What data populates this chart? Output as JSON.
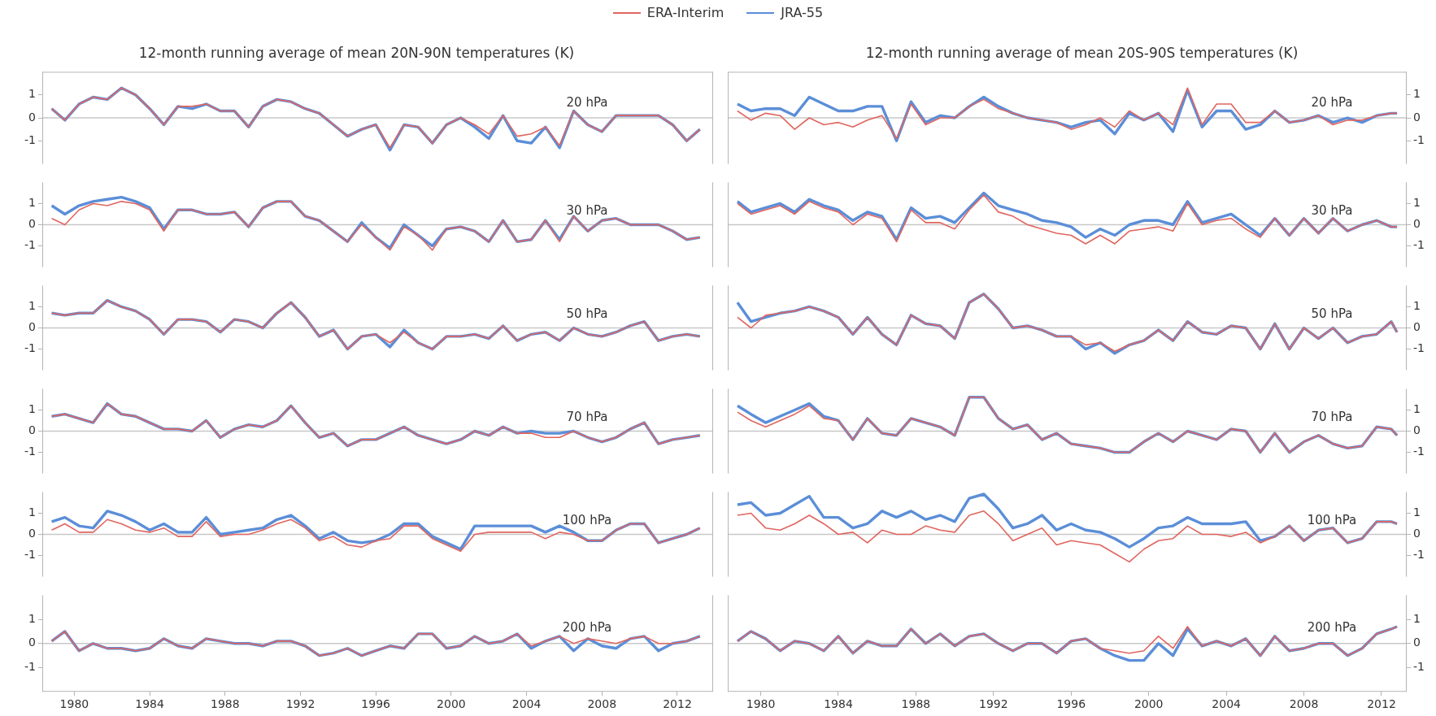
{
  "chart_data": [
    {
      "type": "line",
      "title": "12-month running average of mean 20N-90N temperatures (K)",
      "legend": "top",
      "annotations": [
        "20 hPa"
      ],
      "marker": "none",
      "tick_labels": "y",
      "xlim": [
        1978.3,
        2013.9
      ],
      "xticks": [
        1980,
        1984,
        1988,
        1992,
        1996,
        2000,
        2004,
        2008,
        2012
      ],
      "ylim": [
        -2,
        2
      ],
      "yticks": [
        1,
        0,
        -1
      ],
      "ref_lines": [
        {
          "axis": "y",
          "value": 0,
          "color": "#c8c8c8"
        }
      ],
      "x": [
        1978.8,
        1979.5,
        1980.25,
        1981,
        1981.75,
        1982.5,
        1983.25,
        1984,
        1984.75,
        1985.5,
        1986.25,
        1987,
        1987.75,
        1988.5,
        1989.25,
        1990,
        1990.75,
        1991.5,
        1992.25,
        1993,
        1993.75,
        1994.5,
        1995.25,
        1996,
        1996.75,
        1997.5,
        1998.25,
        1999,
        1999.75,
        2000.5,
        2001.25,
        2002,
        2002.75,
        2003.5,
        2004.25,
        2005,
        2005.75,
        2006.5,
        2007.25,
        2008,
        2008.75,
        2009.5,
        2010.25,
        2011,
        2011.75,
        2012.5,
        2013.2
      ],
      "series": [
        {
          "name": "JRA-55",
          "color": "#5b8ed8",
          "values": [
            0.4,
            -0.1,
            0.6,
            0.9,
            0.8,
            1.3,
            1.0,
            0.4,
            -0.3,
            0.5,
            0.4,
            0.6,
            0.3,
            0.3,
            -0.4,
            0.5,
            0.8,
            0.7,
            0.4,
            0.2,
            -0.3,
            -0.8,
            -0.5,
            -0.3,
            -1.4,
            -0.3,
            -0.4,
            -1.1,
            -0.3,
            0.0,
            -0.4,
            -0.9,
            0.1,
            -1.0,
            -1.1,
            -0.4,
            -1.3,
            0.3,
            -0.3,
            -0.6,
            0.1,
            0.1,
            0.1,
            0.1,
            -0.3,
            -1.0,
            -0.5
          ]
        },
        {
          "name": "ERA-Interim",
          "color": "#e0655f",
          "values": [
            0.4,
            -0.1,
            0.6,
            0.9,
            0.8,
            1.3,
            1.0,
            0.4,
            -0.3,
            0.5,
            0.5,
            0.6,
            0.3,
            0.3,
            -0.4,
            0.5,
            0.8,
            0.7,
            0.4,
            0.2,
            -0.3,
            -0.8,
            -0.5,
            -0.3,
            -1.3,
            -0.3,
            -0.4,
            -1.1,
            -0.3,
            0.0,
            -0.3,
            -0.7,
            0.1,
            -0.8,
            -0.7,
            -0.4,
            -1.2,
            0.3,
            -0.3,
            -0.6,
            0.1,
            0.1,
            0.1,
            0.1,
            -0.3,
            -1.0,
            -0.5
          ]
        }
      ]
    },
    {
      "type": "line",
      "annotations": [
        "30 hPa"
      ],
      "marker": "none",
      "tick_labels": "y",
      "xlim": [
        1978.3,
        2013.9
      ],
      "xticks": [
        1980,
        1984,
        1988,
        1992,
        1996,
        2000,
        2004,
        2008,
        2012
      ],
      "ylim": [
        -2,
        2
      ],
      "yticks": [
        1,
        0,
        -1
      ],
      "ref_lines": [
        {
          "axis": "y",
          "value": 0,
          "color": "#c8c8c8"
        }
      ],
      "x": [
        1978.8,
        1979.5,
        1980.25,
        1981,
        1981.75,
        1982.5,
        1983.25,
        1984,
        1984.75,
        1985.5,
        1986.25,
        1987,
        1987.75,
        1988.5,
        1989.25,
        1990,
        1990.75,
        1991.5,
        1992.25,
        1993,
        1993.75,
        1994.5,
        1995.25,
        1996,
        1996.75,
        1997.5,
        1998.25,
        1999,
        1999.75,
        2000.5,
        2001.25,
        2002,
        2002.75,
        2003.5,
        2004.25,
        2005,
        2005.75,
        2006.5,
        2007.25,
        2008,
        2008.75,
        2009.5,
        2010.25,
        2011,
        2011.75,
        2012.5,
        2013.2
      ],
      "series": [
        {
          "name": "JRA-55",
          "color": "#5b8ed8",
          "values": [
            0.9,
            0.5,
            0.9,
            1.1,
            1.2,
            1.3,
            1.1,
            0.8,
            -0.2,
            0.7,
            0.7,
            0.5,
            0.5,
            0.6,
            -0.1,
            0.8,
            1.1,
            1.1,
            0.4,
            0.2,
            -0.3,
            -0.8,
            0.1,
            -0.6,
            -1.1,
            0.0,
            -0.5,
            -1.0,
            -0.2,
            -0.1,
            -0.3,
            -0.8,
            0.2,
            -0.8,
            -0.7,
            0.2,
            -0.7,
            0.4,
            -0.3,
            0.2,
            0.3,
            0.0,
            0.0,
            0.0,
            -0.3,
            -0.7,
            -0.6
          ]
        },
        {
          "name": "ERA-Interim",
          "color": "#e0655f",
          "values": [
            0.3,
            0.0,
            0.7,
            1.0,
            0.9,
            1.1,
            1.0,
            0.7,
            -0.3,
            0.7,
            0.7,
            0.5,
            0.5,
            0.6,
            -0.1,
            0.8,
            1.1,
            1.1,
            0.4,
            0.2,
            -0.3,
            -0.8,
            0.0,
            -0.6,
            -1.2,
            -0.1,
            -0.5,
            -1.2,
            -0.2,
            -0.1,
            -0.3,
            -0.8,
            0.2,
            -0.8,
            -0.7,
            0.2,
            -0.8,
            0.4,
            -0.3,
            0.2,
            0.3,
            0.0,
            0.0,
            0.0,
            -0.3,
            -0.7,
            -0.6
          ]
        }
      ]
    },
    {
      "type": "line",
      "annotations": [
        "50 hPa"
      ],
      "marker": "none",
      "tick_labels": "y",
      "xlim": [
        1978.3,
        2013.9
      ],
      "xticks": [
        1980,
        1984,
        1988,
        1992,
        1996,
        2000,
        2004,
        2008,
        2012
      ],
      "ylim": [
        -2,
        2
      ],
      "yticks": [
        1,
        0,
        -1
      ],
      "ref_lines": [
        {
          "axis": "y",
          "value": 0,
          "color": "#c8c8c8"
        }
      ],
      "x": [
        1978.8,
        1979.5,
        1980.25,
        1981,
        1981.75,
        1982.5,
        1983.25,
        1984,
        1984.75,
        1985.5,
        1986.25,
        1987,
        1987.75,
        1988.5,
        1989.25,
        1990,
        1990.75,
        1991.5,
        1992.25,
        1993,
        1993.75,
        1994.5,
        1995.25,
        1996,
        1996.75,
        1997.5,
        1998.25,
        1999,
        1999.75,
        2000.5,
        2001.25,
        2002,
        2002.75,
        2003.5,
        2004.25,
        2005,
        2005.75,
        2006.5,
        2007.25,
        2008,
        2008.75,
        2009.5,
        2010.25,
        2011,
        2011.75,
        2012.5,
        2013.2
      ],
      "series": [
        {
          "name": "JRA-55",
          "color": "#5b8ed8",
          "values": [
            0.7,
            0.6,
            0.7,
            0.7,
            1.3,
            1.0,
            0.8,
            0.4,
            -0.3,
            0.4,
            0.4,
            0.3,
            -0.2,
            0.4,
            0.3,
            0.0,
            0.7,
            1.2,
            0.5,
            -0.4,
            -0.1,
            -1.0,
            -0.4,
            -0.3,
            -0.9,
            -0.1,
            -0.7,
            -1.0,
            -0.4,
            -0.4,
            -0.3,
            -0.5,
            0.1,
            -0.6,
            -0.3,
            -0.2,
            -0.6,
            0.0,
            -0.3,
            -0.4,
            -0.2,
            0.1,
            0.3,
            -0.6,
            -0.4,
            -0.3,
            -0.4
          ]
        },
        {
          "name": "ERA-Interim",
          "color": "#e0655f",
          "values": [
            0.7,
            0.6,
            0.7,
            0.7,
            1.3,
            1.0,
            0.8,
            0.4,
            -0.3,
            0.4,
            0.4,
            0.3,
            -0.2,
            0.4,
            0.3,
            0.0,
            0.7,
            1.2,
            0.5,
            -0.4,
            -0.1,
            -1.0,
            -0.4,
            -0.3,
            -0.7,
            -0.2,
            -0.7,
            -1.0,
            -0.4,
            -0.4,
            -0.3,
            -0.5,
            0.1,
            -0.6,
            -0.3,
            -0.2,
            -0.6,
            0.0,
            -0.3,
            -0.4,
            -0.2,
            0.1,
            0.3,
            -0.6,
            -0.4,
            -0.3,
            -0.4
          ]
        }
      ]
    },
    {
      "type": "line",
      "annotations": [
        "70 hPa"
      ],
      "marker": "none",
      "tick_labels": "y",
      "xlim": [
        1978.3,
        2013.9
      ],
      "xticks": [
        1980,
        1984,
        1988,
        1992,
        1996,
        2000,
        2004,
        2008,
        2012
      ],
      "ylim": [
        -2,
        2
      ],
      "yticks": [
        1,
        0,
        -1
      ],
      "ref_lines": [
        {
          "axis": "y",
          "value": 0,
          "color": "#c8c8c8"
        }
      ],
      "x": [
        1978.8,
        1979.5,
        1980.25,
        1981,
        1981.75,
        1982.5,
        1983.25,
        1984,
        1984.75,
        1985.5,
        1986.25,
        1987,
        1987.75,
        1988.5,
        1989.25,
        1990,
        1990.75,
        1991.5,
        1992.25,
        1993,
        1993.75,
        1994.5,
        1995.25,
        1996,
        1996.75,
        1997.5,
        1998.25,
        1999,
        1999.75,
        2000.5,
        2001.25,
        2002,
        2002.75,
        2003.5,
        2004.25,
        2005,
        2005.75,
        2006.5,
        2007.25,
        2008,
        2008.75,
        2009.5,
        2010.25,
        2011,
        2011.75,
        2012.5,
        2013.2
      ],
      "series": [
        {
          "name": "JRA-55",
          "color": "#5b8ed8",
          "values": [
            0.7,
            0.8,
            0.6,
            0.4,
            1.3,
            0.8,
            0.7,
            0.4,
            0.1,
            0.1,
            0.0,
            0.5,
            -0.3,
            0.1,
            0.3,
            0.2,
            0.5,
            1.2,
            0.4,
            -0.3,
            -0.1,
            -0.7,
            -0.4,
            -0.4,
            -0.1,
            0.2,
            -0.2,
            -0.4,
            -0.6,
            -0.4,
            0.0,
            -0.2,
            0.2,
            -0.1,
            0.0,
            -0.1,
            -0.1,
            0.0,
            -0.3,
            -0.5,
            -0.3,
            0.1,
            0.4,
            -0.6,
            -0.4,
            -0.3,
            -0.2
          ]
        },
        {
          "name": "ERA-Interim",
          "color": "#e0655f",
          "values": [
            0.7,
            0.8,
            0.6,
            0.4,
            1.3,
            0.8,
            0.7,
            0.4,
            0.1,
            0.1,
            0.0,
            0.5,
            -0.3,
            0.1,
            0.3,
            0.2,
            0.5,
            1.2,
            0.4,
            -0.3,
            -0.1,
            -0.7,
            -0.4,
            -0.4,
            -0.1,
            0.2,
            -0.2,
            -0.4,
            -0.6,
            -0.4,
            0.0,
            -0.2,
            0.2,
            -0.1,
            -0.1,
            -0.3,
            -0.3,
            0.0,
            -0.3,
            -0.5,
            -0.3,
            0.1,
            0.4,
            -0.6,
            -0.4,
            -0.3,
            -0.2
          ]
        }
      ]
    },
    {
      "type": "line",
      "annotations": [
        "100 hPa"
      ],
      "marker": "none",
      "tick_labels": "y",
      "xlim": [
        1978.3,
        2013.9
      ],
      "xticks": [
        1980,
        1984,
        1988,
        1992,
        1996,
        2000,
        2004,
        2008,
        2012
      ],
      "ylim": [
        -2,
        2
      ],
      "yticks": [
        1,
        0,
        -1
      ],
      "ref_lines": [
        {
          "axis": "y",
          "value": 0,
          "color": "#c8c8c8"
        }
      ],
      "x": [
        1978.8,
        1979.5,
        1980.25,
        1981,
        1981.75,
        1982.5,
        1983.25,
        1984,
        1984.75,
        1985.5,
        1986.25,
        1987,
        1987.75,
        1988.5,
        1989.25,
        1990,
        1990.75,
        1991.5,
        1992.25,
        1993,
        1993.75,
        1994.5,
        1995.25,
        1996,
        1996.75,
        1997.5,
        1998.25,
        1999,
        1999.75,
        2000.5,
        2001.25,
        2002,
        2002.75,
        2003.5,
        2004.25,
        2005,
        2005.75,
        2006.5,
        2007.25,
        2008,
        2008.75,
        2009.5,
        2010.25,
        2011,
        2011.75,
        2012.5,
        2013.2
      ],
      "series": [
        {
          "name": "JRA-55",
          "color": "#5b8ed8",
          "values": [
            0.6,
            0.8,
            0.4,
            0.3,
            1.1,
            0.9,
            0.6,
            0.2,
            0.5,
            0.1,
            0.1,
            0.8,
            0.0,
            0.1,
            0.2,
            0.3,
            0.7,
            0.9,
            0.4,
            -0.2,
            0.1,
            -0.3,
            -0.4,
            -0.3,
            0.0,
            0.5,
            0.5,
            -0.1,
            -0.4,
            -0.7,
            0.4,
            0.4,
            0.4,
            0.4,
            0.4,
            0.1,
            0.4,
            0.1,
            -0.3,
            -0.3,
            0.2,
            0.5,
            0.5,
            -0.4,
            -0.2,
            0.0,
            0.3
          ]
        },
        {
          "name": "ERA-Interim",
          "color": "#e0655f",
          "values": [
            0.2,
            0.5,
            0.1,
            0.1,
            0.7,
            0.5,
            0.2,
            0.1,
            0.3,
            -0.1,
            -0.1,
            0.6,
            -0.1,
            0.0,
            0.0,
            0.2,
            0.5,
            0.7,
            0.3,
            -0.3,
            -0.1,
            -0.5,
            -0.6,
            -0.3,
            -0.2,
            0.4,
            0.4,
            -0.2,
            -0.5,
            -0.8,
            0.0,
            0.1,
            0.1,
            0.1,
            0.1,
            -0.2,
            0.1,
            0.0,
            -0.3,
            -0.3,
            0.2,
            0.5,
            0.5,
            -0.4,
            -0.2,
            0.0,
            0.3
          ]
        }
      ]
    },
    {
      "type": "line",
      "annotations": [
        "200 hPa"
      ],
      "marker": "none",
      "xlim": [
        1978.3,
        2013.9
      ],
      "xticks": [
        1980,
        1984,
        1988,
        1992,
        1996,
        2000,
        2004,
        2008,
        2012
      ],
      "ylim": [
        -2,
        2
      ],
      "yticks": [
        1,
        0,
        -1
      ],
      "ref_lines": [
        {
          "axis": "y",
          "value": 0,
          "color": "#c8c8c8"
        }
      ],
      "x": [
        1978.8,
        1979.5,
        1980.25,
        1981,
        1981.75,
        1982.5,
        1983.25,
        1984,
        1984.75,
        1985.5,
        1986.25,
        1987,
        1987.75,
        1988.5,
        1989.25,
        1990,
        1990.75,
        1991.5,
        1992.25,
        1993,
        1993.75,
        1994.5,
        1995.25,
        1996,
        1996.75,
        1997.5,
        1998.25,
        1999,
        1999.75,
        2000.5,
        2001.25,
        2002,
        2002.75,
        2003.5,
        2004.25,
        2005,
        2005.75,
        2006.5,
        2007.25,
        2008,
        2008.75,
        2009.5,
        2010.25,
        2011,
        2011.75,
        2012.5,
        2013.2
      ],
      "series": [
        {
          "name": "JRA-55",
          "color": "#5b8ed8",
          "values": [
            0.1,
            0.5,
            -0.3,
            0.0,
            -0.2,
            -0.2,
            -0.3,
            -0.2,
            0.2,
            -0.1,
            -0.2,
            0.2,
            0.1,
            0.0,
            0.0,
            -0.1,
            0.1,
            0.1,
            -0.1,
            -0.5,
            -0.4,
            -0.2,
            -0.5,
            -0.3,
            -0.1,
            -0.2,
            0.4,
            0.4,
            -0.2,
            -0.1,
            0.3,
            0.0,
            0.1,
            0.4,
            -0.2,
            0.1,
            0.3,
            -0.3,
            0.2,
            -0.1,
            -0.2,
            0.2,
            0.3,
            -0.3,
            0.0,
            0.1,
            0.3
          ]
        },
        {
          "name": "ERA-Interim",
          "color": "#e0655f",
          "values": [
            0.1,
            0.5,
            -0.3,
            0.0,
            -0.2,
            -0.2,
            -0.3,
            -0.2,
            0.2,
            -0.1,
            -0.2,
            0.2,
            0.1,
            0.0,
            0.0,
            -0.1,
            0.1,
            0.1,
            -0.1,
            -0.5,
            -0.4,
            -0.2,
            -0.5,
            -0.3,
            -0.1,
            -0.2,
            0.4,
            0.4,
            -0.2,
            -0.1,
            0.3,
            0.0,
            0.1,
            0.4,
            -0.1,
            0.1,
            0.3,
            0.0,
            0.2,
            0.1,
            0.0,
            0.2,
            0.3,
            0.0,
            0.0,
            0.1,
            0.3
          ]
        }
      ]
    },
    {
      "type": "line",
      "title": "12-month running average of mean 20S-90S temperatures (K)",
      "annotations": [
        "20 hPa"
      ],
      "marker": "none",
      "tick_labels": "y",
      "xlim": [
        1978.3,
        2013.3
      ],
      "xticks": [
        1980,
        1984,
        1988,
        1992,
        1996,
        2000,
        2004,
        2008,
        2012
      ],
      "ylim": [
        -2,
        2
      ],
      "yticks": [
        1,
        0,
        -1
      ],
      "ref_lines": [
        {
          "axis": "y",
          "value": 0,
          "color": "#c8c8c8"
        }
      ],
      "x": [
        1978.8,
        1979.5,
        1980.25,
        1981,
        1981.75,
        1982.5,
        1983.25,
        1984,
        1984.75,
        1985.5,
        1986.25,
        1987,
        1987.75,
        1988.5,
        1989.25,
        1990,
        1990.75,
        1991.5,
        1992.25,
        1993,
        1993.75,
        1994.5,
        1995.25,
        1996,
        1996.75,
        1997.5,
        1998.25,
        1999,
        1999.75,
        2000.5,
        2001.25,
        2002,
        2002.75,
        2003.5,
        2004.25,
        2005,
        2005.75,
        2006.5,
        2007.25,
        2008,
        2008.75,
        2009.5,
        2010.25,
        2011,
        2011.75,
        2012.5,
        2012.8
      ],
      "series": [
        {
          "name": "JRA-55",
          "color": "#5b8ed8",
          "values": [
            0.6,
            0.3,
            0.4,
            0.4,
            0.1,
            0.9,
            0.6,
            0.3,
            0.3,
            0.5,
            0.5,
            -1.0,
            0.7,
            -0.2,
            0.1,
            0.0,
            0.5,
            0.9,
            0.5,
            0.2,
            0.0,
            -0.1,
            -0.2,
            -0.4,
            -0.2,
            -0.1,
            -0.7,
            0.2,
            -0.1,
            0.2,
            -0.6,
            1.2,
            -0.4,
            0.3,
            0.3,
            -0.5,
            -0.3,
            0.3,
            -0.2,
            -0.1,
            0.1,
            -0.2,
            0.0,
            -0.2,
            0.1,
            0.2,
            0.2
          ]
        },
        {
          "name": "ERA-Interim",
          "color": "#e0655f",
          "values": [
            0.3,
            -0.1,
            0.2,
            0.1,
            -0.5,
            0.0,
            -0.3,
            -0.2,
            -0.4,
            -0.1,
            0.1,
            -0.9,
            0.6,
            -0.3,
            0.0,
            0.0,
            0.5,
            0.8,
            0.4,
            0.2,
            0.0,
            -0.1,
            -0.2,
            -0.5,
            -0.3,
            0.0,
            -0.4,
            0.3,
            -0.1,
            0.2,
            -0.3,
            1.3,
            -0.3,
            0.6,
            0.6,
            -0.2,
            -0.2,
            0.3,
            -0.2,
            -0.1,
            0.1,
            -0.3,
            -0.1,
            -0.1,
            0.1,
            0.2,
            0.2
          ]
        }
      ]
    },
    {
      "type": "line",
      "annotations": [
        "30 hPa"
      ],
      "marker": "none",
      "tick_labels": "y",
      "xlim": [
        1978.3,
        2013.3
      ],
      "xticks": [
        1980,
        1984,
        1988,
        1992,
        1996,
        2000,
        2004,
        2008,
        2012
      ],
      "ylim": [
        -2,
        2
      ],
      "yticks": [
        1,
        0,
        -1
      ],
      "ref_lines": [
        {
          "axis": "y",
          "value": 0,
          "color": "#c8c8c8"
        }
      ],
      "x": [
        1978.8,
        1979.5,
        1980.25,
        1981,
        1981.75,
        1982.5,
        1983.25,
        1984,
        1984.75,
        1985.5,
        1986.25,
        1987,
        1987.75,
        1988.5,
        1989.25,
        1990,
        1990.75,
        1991.5,
        1992.25,
        1993,
        1993.75,
        1994.5,
        1995.25,
        1996,
        1996.75,
        1997.5,
        1998.25,
        1999,
        1999.75,
        2000.5,
        2001.25,
        2002,
        2002.75,
        2003.5,
        2004.25,
        2005,
        2005.75,
        2006.5,
        2007.25,
        2008,
        2008.75,
        2009.5,
        2010.25,
        2011,
        2011.75,
        2012.5,
        2012.8
      ],
      "series": [
        {
          "name": "JRA-55",
          "color": "#5b8ed8",
          "values": [
            1.1,
            0.6,
            0.8,
            1.0,
            0.6,
            1.2,
            0.9,
            0.7,
            0.2,
            0.6,
            0.4,
            -0.7,
            0.8,
            0.3,
            0.4,
            0.1,
            0.8,
            1.5,
            0.9,
            0.7,
            0.5,
            0.2,
            0.1,
            -0.1,
            -0.6,
            -0.2,
            -0.5,
            0.0,
            0.2,
            0.2,
            0.0,
            1.1,
            0.1,
            0.3,
            0.5,
            0.0,
            -0.5,
            0.3,
            -0.5,
            0.3,
            -0.4,
            0.3,
            -0.3,
            0.0,
            0.2,
            -0.1,
            -0.1
          ]
        },
        {
          "name": "ERA-Interim",
          "color": "#e0655f",
          "values": [
            1.0,
            0.5,
            0.7,
            0.9,
            0.5,
            1.1,
            0.8,
            0.6,
            0.0,
            0.5,
            0.3,
            -0.8,
            0.7,
            0.1,
            0.1,
            -0.2,
            0.7,
            1.4,
            0.6,
            0.4,
            0.0,
            -0.2,
            -0.4,
            -0.5,
            -0.9,
            -0.5,
            -0.9,
            -0.3,
            -0.2,
            -0.1,
            -0.3,
            1.0,
            0.0,
            0.2,
            0.3,
            -0.2,
            -0.6,
            0.3,
            -0.5,
            0.3,
            -0.4,
            0.3,
            -0.3,
            0.0,
            0.2,
            -0.1,
            -0.1
          ]
        }
      ]
    },
    {
      "type": "line",
      "annotations": [
        "50 hPa"
      ],
      "marker": "none",
      "tick_labels": "y",
      "xlim": [
        1978.3,
        2013.3
      ],
      "xticks": [
        1980,
        1984,
        1988,
        1992,
        1996,
        2000,
        2004,
        2008,
        2012
      ],
      "ylim": [
        -2,
        2
      ],
      "yticks": [
        1,
        0,
        -1
      ],
      "ref_lines": [
        {
          "axis": "y",
          "value": 0,
          "color": "#c8c8c8"
        }
      ],
      "x": [
        1978.8,
        1979.5,
        1980.25,
        1981,
        1981.75,
        1982.5,
        1983.25,
        1984,
        1984.75,
        1985.5,
        1986.25,
        1987,
        1987.75,
        1988.5,
        1989.25,
        1990,
        1990.75,
        1991.5,
        1992.25,
        1993,
        1993.75,
        1994.5,
        1995.25,
        1996,
        1996.75,
        1997.5,
        1998.25,
        1999,
        1999.75,
        2000.5,
        2001.25,
        2002,
        2002.75,
        2003.5,
        2004.25,
        2005,
        2005.75,
        2006.5,
        2007.25,
        2008,
        2008.75,
        2009.5,
        2010.25,
        2011,
        2011.75,
        2012.5,
        2012.8
      ],
      "series": [
        {
          "name": "JRA-55",
          "color": "#5b8ed8",
          "values": [
            1.2,
            0.3,
            0.5,
            0.7,
            0.8,
            1.0,
            0.8,
            0.5,
            -0.3,
            0.5,
            -0.3,
            -0.8,
            0.6,
            0.2,
            0.1,
            -0.5,
            1.2,
            1.6,
            0.9,
            0.0,
            0.1,
            -0.1,
            -0.4,
            -0.4,
            -1.0,
            -0.7,
            -1.2,
            -0.8,
            -0.6,
            -0.1,
            -0.6,
            0.3,
            -0.2,
            -0.3,
            0.1,
            0.0,
            -1.0,
            0.2,
            -1.0,
            0.0,
            -0.5,
            0.0,
            -0.7,
            -0.4,
            -0.3,
            0.3,
            -0.2
          ]
        },
        {
          "name": "ERA-Interim",
          "color": "#e0655f",
          "values": [
            0.5,
            0.0,
            0.6,
            0.7,
            0.8,
            1.0,
            0.8,
            0.5,
            -0.3,
            0.5,
            -0.3,
            -0.8,
            0.6,
            0.2,
            0.1,
            -0.5,
            1.2,
            1.6,
            0.9,
            0.0,
            0.1,
            -0.1,
            -0.4,
            -0.4,
            -0.8,
            -0.7,
            -1.1,
            -0.8,
            -0.6,
            -0.1,
            -0.6,
            0.3,
            -0.2,
            -0.3,
            0.1,
            0.0,
            -1.0,
            0.2,
            -1.0,
            0.0,
            -0.5,
            0.0,
            -0.7,
            -0.4,
            -0.3,
            0.3,
            -0.2
          ]
        }
      ]
    },
    {
      "type": "line",
      "annotations": [
        "70 hPa"
      ],
      "marker": "none",
      "tick_labels": "y",
      "xlim": [
        1978.3,
        2013.3
      ],
      "xticks": [
        1980,
        1984,
        1988,
        1992,
        1996,
        2000,
        2004,
        2008,
        2012
      ],
      "ylim": [
        -2,
        2
      ],
      "yticks": [
        1,
        0,
        -1
      ],
      "ref_lines": [
        {
          "axis": "y",
          "value": 0,
          "color": "#c8c8c8"
        }
      ],
      "x": [
        1978.8,
        1979.5,
        1980.25,
        1981,
        1981.75,
        1982.5,
        1983.25,
        1984,
        1984.75,
        1985.5,
        1986.25,
        1987,
        1987.75,
        1988.5,
        1989.25,
        1990,
        1990.75,
        1991.5,
        1992.25,
        1993,
        1993.75,
        1994.5,
        1995.25,
        1996,
        1996.75,
        1997.5,
        1998.25,
        1999,
        1999.75,
        2000.5,
        2001.25,
        2002,
        2002.75,
        2003.5,
        2004.25,
        2005,
        2005.75,
        2006.5,
        2007.25,
        2008,
        2008.75,
        2009.5,
        2010.25,
        2011,
        2011.75,
        2012.5,
        2012.8
      ],
      "series": [
        {
          "name": "JRA-55",
          "color": "#5b8ed8",
          "values": [
            1.2,
            0.8,
            0.4,
            0.7,
            1.0,
            1.3,
            0.7,
            0.5,
            -0.4,
            0.6,
            -0.1,
            -0.2,
            0.6,
            0.4,
            0.2,
            -0.2,
            1.6,
            1.6,
            0.6,
            0.1,
            0.3,
            -0.4,
            -0.1,
            -0.6,
            -0.7,
            -0.8,
            -1.0,
            -1.0,
            -0.5,
            -0.1,
            -0.5,
            0.0,
            -0.2,
            -0.4,
            0.1,
            0.0,
            -1.0,
            -0.1,
            -1.0,
            -0.5,
            -0.2,
            -0.6,
            -0.8,
            -0.7,
            0.2,
            0.1,
            -0.2
          ]
        },
        {
          "name": "ERA-Interim",
          "color": "#e0655f",
          "values": [
            0.9,
            0.5,
            0.2,
            0.5,
            0.8,
            1.2,
            0.6,
            0.5,
            -0.4,
            0.6,
            -0.1,
            -0.2,
            0.6,
            0.4,
            0.2,
            -0.2,
            1.6,
            1.6,
            0.6,
            0.1,
            0.3,
            -0.4,
            -0.1,
            -0.6,
            -0.7,
            -0.8,
            -1.0,
            -1.0,
            -0.5,
            -0.1,
            -0.5,
            0.0,
            -0.2,
            -0.4,
            0.1,
            0.0,
            -1.0,
            -0.1,
            -1.0,
            -0.5,
            -0.2,
            -0.6,
            -0.8,
            -0.7,
            0.2,
            0.1,
            -0.2
          ]
        }
      ]
    },
    {
      "type": "line",
      "annotations": [
        "100 hPa"
      ],
      "marker": "none",
      "tick_labels": "y",
      "xlim": [
        1978.3,
        2013.3
      ],
      "xticks": [
        1980,
        1984,
        1988,
        1992,
        1996,
        2000,
        2004,
        2008,
        2012
      ],
      "ylim": [
        -2,
        2
      ],
      "yticks": [
        1,
        0,
        -1
      ],
      "ref_lines": [
        {
          "axis": "y",
          "value": 0,
          "color": "#c8c8c8"
        }
      ],
      "x": [
        1978.8,
        1979.5,
        1980.25,
        1981,
        1981.75,
        1982.5,
        1983.25,
        1984,
        1984.75,
        1985.5,
        1986.25,
        1987,
        1987.75,
        1988.5,
        1989.25,
        1990,
        1990.75,
        1991.5,
        1992.25,
        1993,
        1993.75,
        1994.5,
        1995.25,
        1996,
        1996.75,
        1997.5,
        1998.25,
        1999,
        1999.75,
        2000.5,
        2001.25,
        2002,
        2002.75,
        2003.5,
        2004.25,
        2005,
        2005.75,
        2006.5,
        2007.25,
        2008,
        2008.75,
        2009.5,
        2010.25,
        2011,
        2011.75,
        2012.5,
        2012.8
      ],
      "series": [
        {
          "name": "JRA-55",
          "color": "#5b8ed8",
          "values": [
            1.4,
            1.5,
            0.9,
            1.0,
            1.4,
            1.8,
            0.8,
            0.8,
            0.3,
            0.5,
            1.1,
            0.8,
            1.1,
            0.7,
            0.9,
            0.6,
            1.7,
            1.9,
            1.2,
            0.3,
            0.5,
            0.9,
            0.2,
            0.5,
            0.2,
            0.1,
            -0.2,
            -0.6,
            -0.2,
            0.3,
            0.4,
            0.8,
            0.5,
            0.5,
            0.5,
            0.6,
            -0.3,
            -0.1,
            0.4,
            -0.3,
            0.2,
            0.3,
            -0.4,
            -0.2,
            0.6,
            0.6,
            0.5
          ]
        },
        {
          "name": "ERA-Interim",
          "color": "#e0655f",
          "values": [
            0.9,
            1.0,
            0.3,
            0.2,
            0.5,
            0.9,
            0.5,
            0.0,
            0.1,
            -0.4,
            0.2,
            0.0,
            0.0,
            0.4,
            0.2,
            0.1,
            0.9,
            1.1,
            0.5,
            -0.3,
            0.0,
            0.3,
            -0.5,
            -0.3,
            -0.4,
            -0.5,
            -0.9,
            -1.3,
            -0.7,
            -0.3,
            -0.2,
            0.4,
            0.0,
            0.0,
            -0.1,
            0.1,
            -0.4,
            -0.1,
            0.4,
            -0.3,
            0.2,
            0.3,
            -0.4,
            -0.2,
            0.6,
            0.6,
            0.5
          ]
        }
      ]
    },
    {
      "type": "line",
      "annotations": [
        "200 hPa"
      ],
      "marker": "none",
      "xlim": [
        1978.3,
        2013.3
      ],
      "xticks": [
        1980,
        1984,
        1988,
        1992,
        1996,
        2000,
        2004,
        2008,
        2012
      ],
      "ylim": [
        -2,
        2
      ],
      "yticks": [
        1,
        0,
        -1
      ],
      "ref_lines": [
        {
          "axis": "y",
          "value": 0,
          "color": "#c8c8c8"
        }
      ],
      "x": [
        1978.8,
        1979.5,
        1980.25,
        1981,
        1981.75,
        1982.5,
        1983.25,
        1984,
        1984.75,
        1985.5,
        1986.25,
        1987,
        1987.75,
        1988.5,
        1989.25,
        1990,
        1990.75,
        1991.5,
        1992.25,
        1993,
        1993.75,
        1994.5,
        1995.25,
        1996,
        1996.75,
        1997.5,
        1998.25,
        1999,
        1999.75,
        2000.5,
        2001.25,
        2002,
        2002.75,
        2003.5,
        2004.25,
        2005,
        2005.75,
        2006.5,
        2007.25,
        2008,
        2008.75,
        2009.5,
        2010.25,
        2011,
        2011.75,
        2012.5,
        2012.8
      ],
      "series": [
        {
          "name": "JRA-55",
          "color": "#5b8ed8",
          "values": [
            0.1,
            0.5,
            0.2,
            -0.3,
            0.1,
            0.0,
            -0.3,
            0.3,
            -0.4,
            0.1,
            -0.1,
            -0.1,
            0.6,
            0.0,
            0.4,
            -0.1,
            0.3,
            0.4,
            0.0,
            -0.3,
            0.0,
            0.0,
            -0.4,
            0.1,
            0.2,
            -0.2,
            -0.5,
            -0.7,
            -0.7,
            0.0,
            -0.5,
            0.6,
            -0.1,
            0.1,
            -0.1,
            0.2,
            -0.5,
            0.3,
            -0.3,
            -0.2,
            0.0,
            0.0,
            -0.5,
            -0.2,
            0.4,
            0.6,
            0.7
          ]
        },
        {
          "name": "ERA-Interim",
          "color": "#e0655f",
          "values": [
            0.1,
            0.5,
            0.2,
            -0.3,
            0.1,
            0.0,
            -0.3,
            0.3,
            -0.4,
            0.1,
            -0.1,
            -0.1,
            0.6,
            0.0,
            0.4,
            -0.1,
            0.3,
            0.4,
            0.0,
            -0.3,
            0.0,
            0.0,
            -0.4,
            0.1,
            0.2,
            -0.2,
            -0.3,
            -0.4,
            -0.3,
            0.3,
            -0.2,
            0.7,
            -0.1,
            0.1,
            -0.1,
            0.2,
            -0.5,
            0.3,
            -0.3,
            -0.2,
            0.0,
            0.0,
            -0.5,
            -0.2,
            0.4,
            0.6,
            0.7
          ]
        }
      ]
    }
  ]
}
